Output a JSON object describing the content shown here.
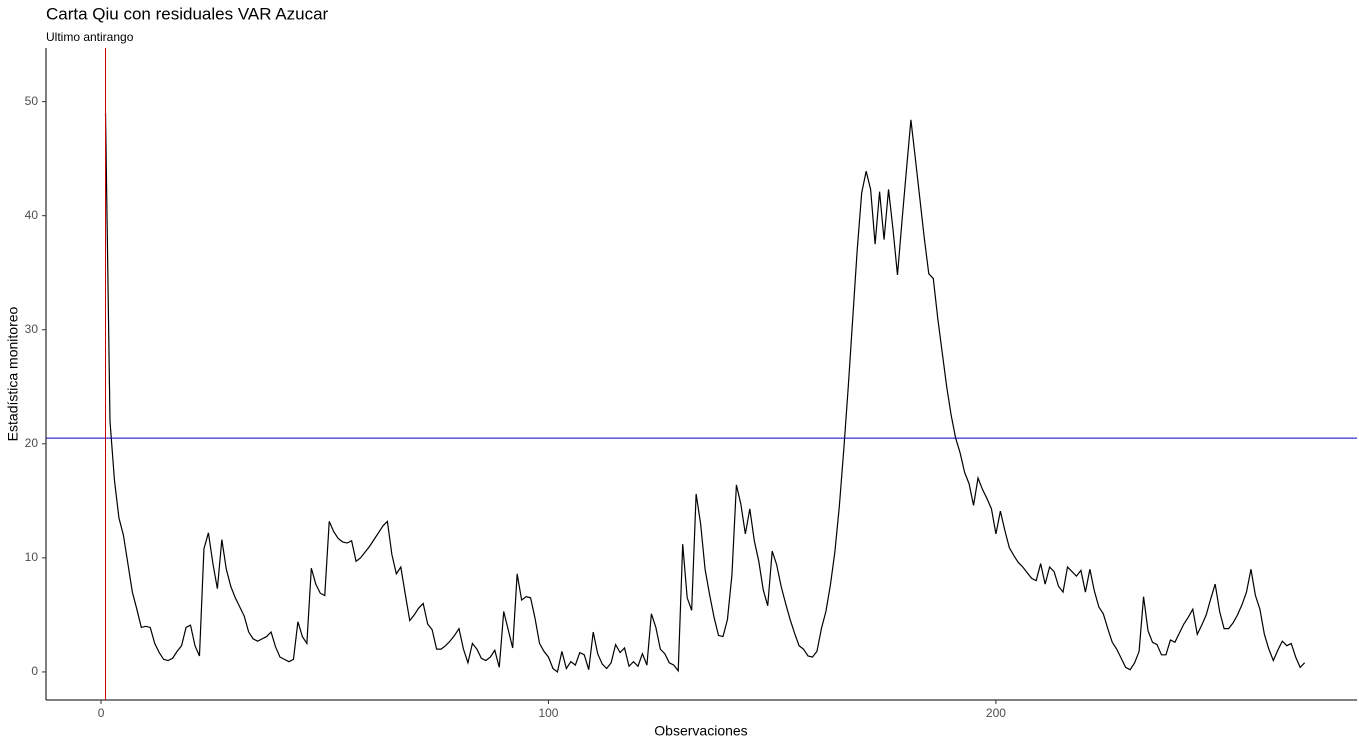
{
  "chart_data": {
    "type": "line",
    "title": "Carta Qiu con residuales VAR Azucar",
    "subtitle": "Ultimo antirango",
    "x_label": "Observaciones",
    "y_label": "Estadística monitoreo",
    "xlim": [
      -12.3,
      280.7
    ],
    "ylim": [
      -2.46,
      54.7
    ],
    "xticks": [
      0,
      100,
      200
    ],
    "yticks": [
      0,
      10,
      20,
      30,
      40,
      50
    ],
    "grid": false,
    "hline": {
      "y": 20.5,
      "color": "#0000cc"
    },
    "vline": {
      "x": 1,
      "color": "#cc0000"
    },
    "x": [
      1,
      2,
      3,
      4,
      5,
      6,
      7,
      8,
      9,
      10,
      11,
      12,
      13,
      14,
      15,
      16,
      17,
      18,
      19,
      20,
      21,
      22,
      23,
      24,
      25,
      26,
      27,
      28,
      29,
      30,
      31,
      32,
      33,
      34,
      35,
      36,
      37,
      38,
      39,
      40,
      41,
      42,
      43,
      44,
      45,
      46,
      47,
      48,
      49,
      50,
      51,
      52,
      53,
      54,
      55,
      56,
      57,
      58,
      59,
      60,
      61,
      62,
      63,
      64,
      65,
      66,
      67,
      68,
      69,
      70,
      71,
      72,
      73,
      74,
      75,
      76,
      77,
      78,
      79,
      80,
      81,
      82,
      83,
      84,
      85,
      86,
      87,
      88,
      89,
      90,
      91,
      92,
      93,
      94,
      95,
      96,
      97,
      98,
      99,
      100,
      101,
      102,
      103,
      104,
      105,
      106,
      107,
      108,
      109,
      110,
      111,
      112,
      113,
      114,
      115,
      116,
      117,
      118,
      119,
      120,
      121,
      122,
      123,
      124,
      125,
      126,
      127,
      128,
      129,
      130,
      131,
      132,
      133,
      134,
      135,
      136,
      137,
      138,
      139,
      140,
      141,
      142,
      143,
      144,
      145,
      146,
      147,
      148,
      149,
      150,
      151,
      152,
      153,
      154,
      155,
      156,
      157,
      158,
      159,
      160,
      161,
      162,
      163,
      164,
      165,
      166,
      167,
      168,
      169,
      170,
      171,
      172,
      173,
      174,
      175,
      176,
      177,
      178,
      179,
      180,
      181,
      182,
      183,
      184,
      185,
      186,
      187,
      188,
      189,
      190,
      191,
      192,
      193,
      194,
      195,
      196,
      197,
      198,
      199,
      200,
      201,
      202,
      203,
      204,
      205,
      206,
      207,
      208,
      209,
      210,
      211,
      212,
      213,
      214,
      215,
      216,
      217,
      218,
      219,
      220,
      221,
      222,
      223,
      224,
      225,
      226,
      227,
      228,
      229,
      230,
      231,
      232,
      233,
      234,
      235,
      236,
      237,
      238,
      239,
      240,
      241,
      242,
      243,
      244,
      245,
      246,
      247,
      248,
      249,
      250,
      251,
      252,
      253,
      254,
      255,
      256,
      257,
      258,
      259,
      260,
      261,
      262,
      263,
      264,
      265,
      266,
      267,
      268,
      269
    ],
    "series": [
      {
        "color": "#000000",
        "values": [
          49,
          22,
          16.8,
          13.5,
          12,
          9.5,
          7,
          5.5,
          3.9,
          4,
          3.9,
          2.5,
          1.7,
          1.1,
          1.0,
          1.2,
          1.8,
          2.3,
          3.9,
          4.1,
          2.3,
          1.4,
          10.8,
          12.2,
          9.5,
          7.3,
          11.6,
          9,
          7.5,
          6.5,
          5.7,
          4.9,
          3.5,
          2.9,
          2.7,
          2.9,
          3.1,
          3.5,
          2.2,
          1.3,
          1.1,
          0.9,
          1.1,
          4.4,
          3.1,
          2.5,
          9.1,
          7.7,
          6.9,
          6.7,
          13.2,
          12.3,
          11.7,
          11.4,
          11.3,
          11.5,
          9.7,
          10,
          10.5,
          11,
          11.6,
          12.2,
          12.8,
          13.2,
          10.3,
          8.6,
          9.2,
          6.8,
          4.5,
          5,
          5.6,
          6,
          4.2,
          3.7,
          2,
          2,
          2.3,
          2.7,
          3.2,
          3.8,
          2,
          0.8,
          2.5,
          2,
          1.2,
          1,
          1.3,
          1.9,
          0.4,
          5.3,
          3.7,
          2.1,
          8.6,
          6.3,
          6.6,
          6.5,
          4.7,
          2.5,
          1.8,
          1.3,
          0.3,
          0,
          1.8,
          0.3,
          0.9,
          0.6,
          1.7,
          1.5,
          0.2,
          3.5,
          1.6,
          0.7,
          0.3,
          0.8,
          2.4,
          1.7,
          2.1,
          0.5,
          0.9,
          0.5,
          1.6,
          0.6,
          5.1,
          3.9,
          2,
          1.6,
          0.8,
          0.6,
          0.1,
          11.2,
          6.5,
          5.4,
          15.6,
          13,
          9,
          6.8,
          4.8,
          3.2,
          3.1,
          4.6,
          8.5,
          16.4,
          14.7,
          12.1,
          14.3,
          11.5,
          9.7,
          7.2,
          5.8,
          10.6,
          9.4,
          7.5,
          6,
          4.6,
          3.4,
          2.3,
          2,
          1.4,
          1.3,
          1.8,
          3.8,
          5.3,
          7.6,
          10.5,
          14.5,
          19.5,
          25,
          31,
          37,
          42,
          43.9,
          42.3,
          37.5,
          42.1,
          37.9,
          42.3,
          38.8,
          34.8,
          39.5,
          44,
          48.4,
          45,
          41.5,
          38,
          34.9,
          34.5,
          31,
          28,
          25,
          22.5,
          20.5,
          19.2,
          17.5,
          16.5,
          14.6,
          17,
          16,
          15.2,
          14.3,
          12.1,
          14.1,
          12.4,
          10.9,
          10.2,
          9.6,
          9.2,
          8.7,
          8.2,
          8,
          9.5,
          7.7,
          9.2,
          8.8,
          7.5,
          7,
          9.2,
          8.8,
          8.4,
          8.9,
          7,
          9,
          7.1,
          5.7,
          5.1,
          3.8,
          2.6,
          2,
          1.2,
          0.4,
          0.2,
          0.8,
          1.8,
          6.6,
          3.6,
          2.6,
          2.4,
          1.5,
          1.5,
          2.8,
          2.6,
          3.4,
          4.2,
          4.8,
          5.5,
          3.3,
          4.1,
          5,
          6.4,
          7.7,
          5.3,
          3.8,
          3.8,
          4.3,
          5,
          5.9,
          7,
          9,
          6.7,
          5.5,
          3.3,
          2,
          1,
          1.9,
          2.7,
          2.3,
          2.5,
          1.3,
          0.4,
          0.8
        ]
      }
    ]
  }
}
